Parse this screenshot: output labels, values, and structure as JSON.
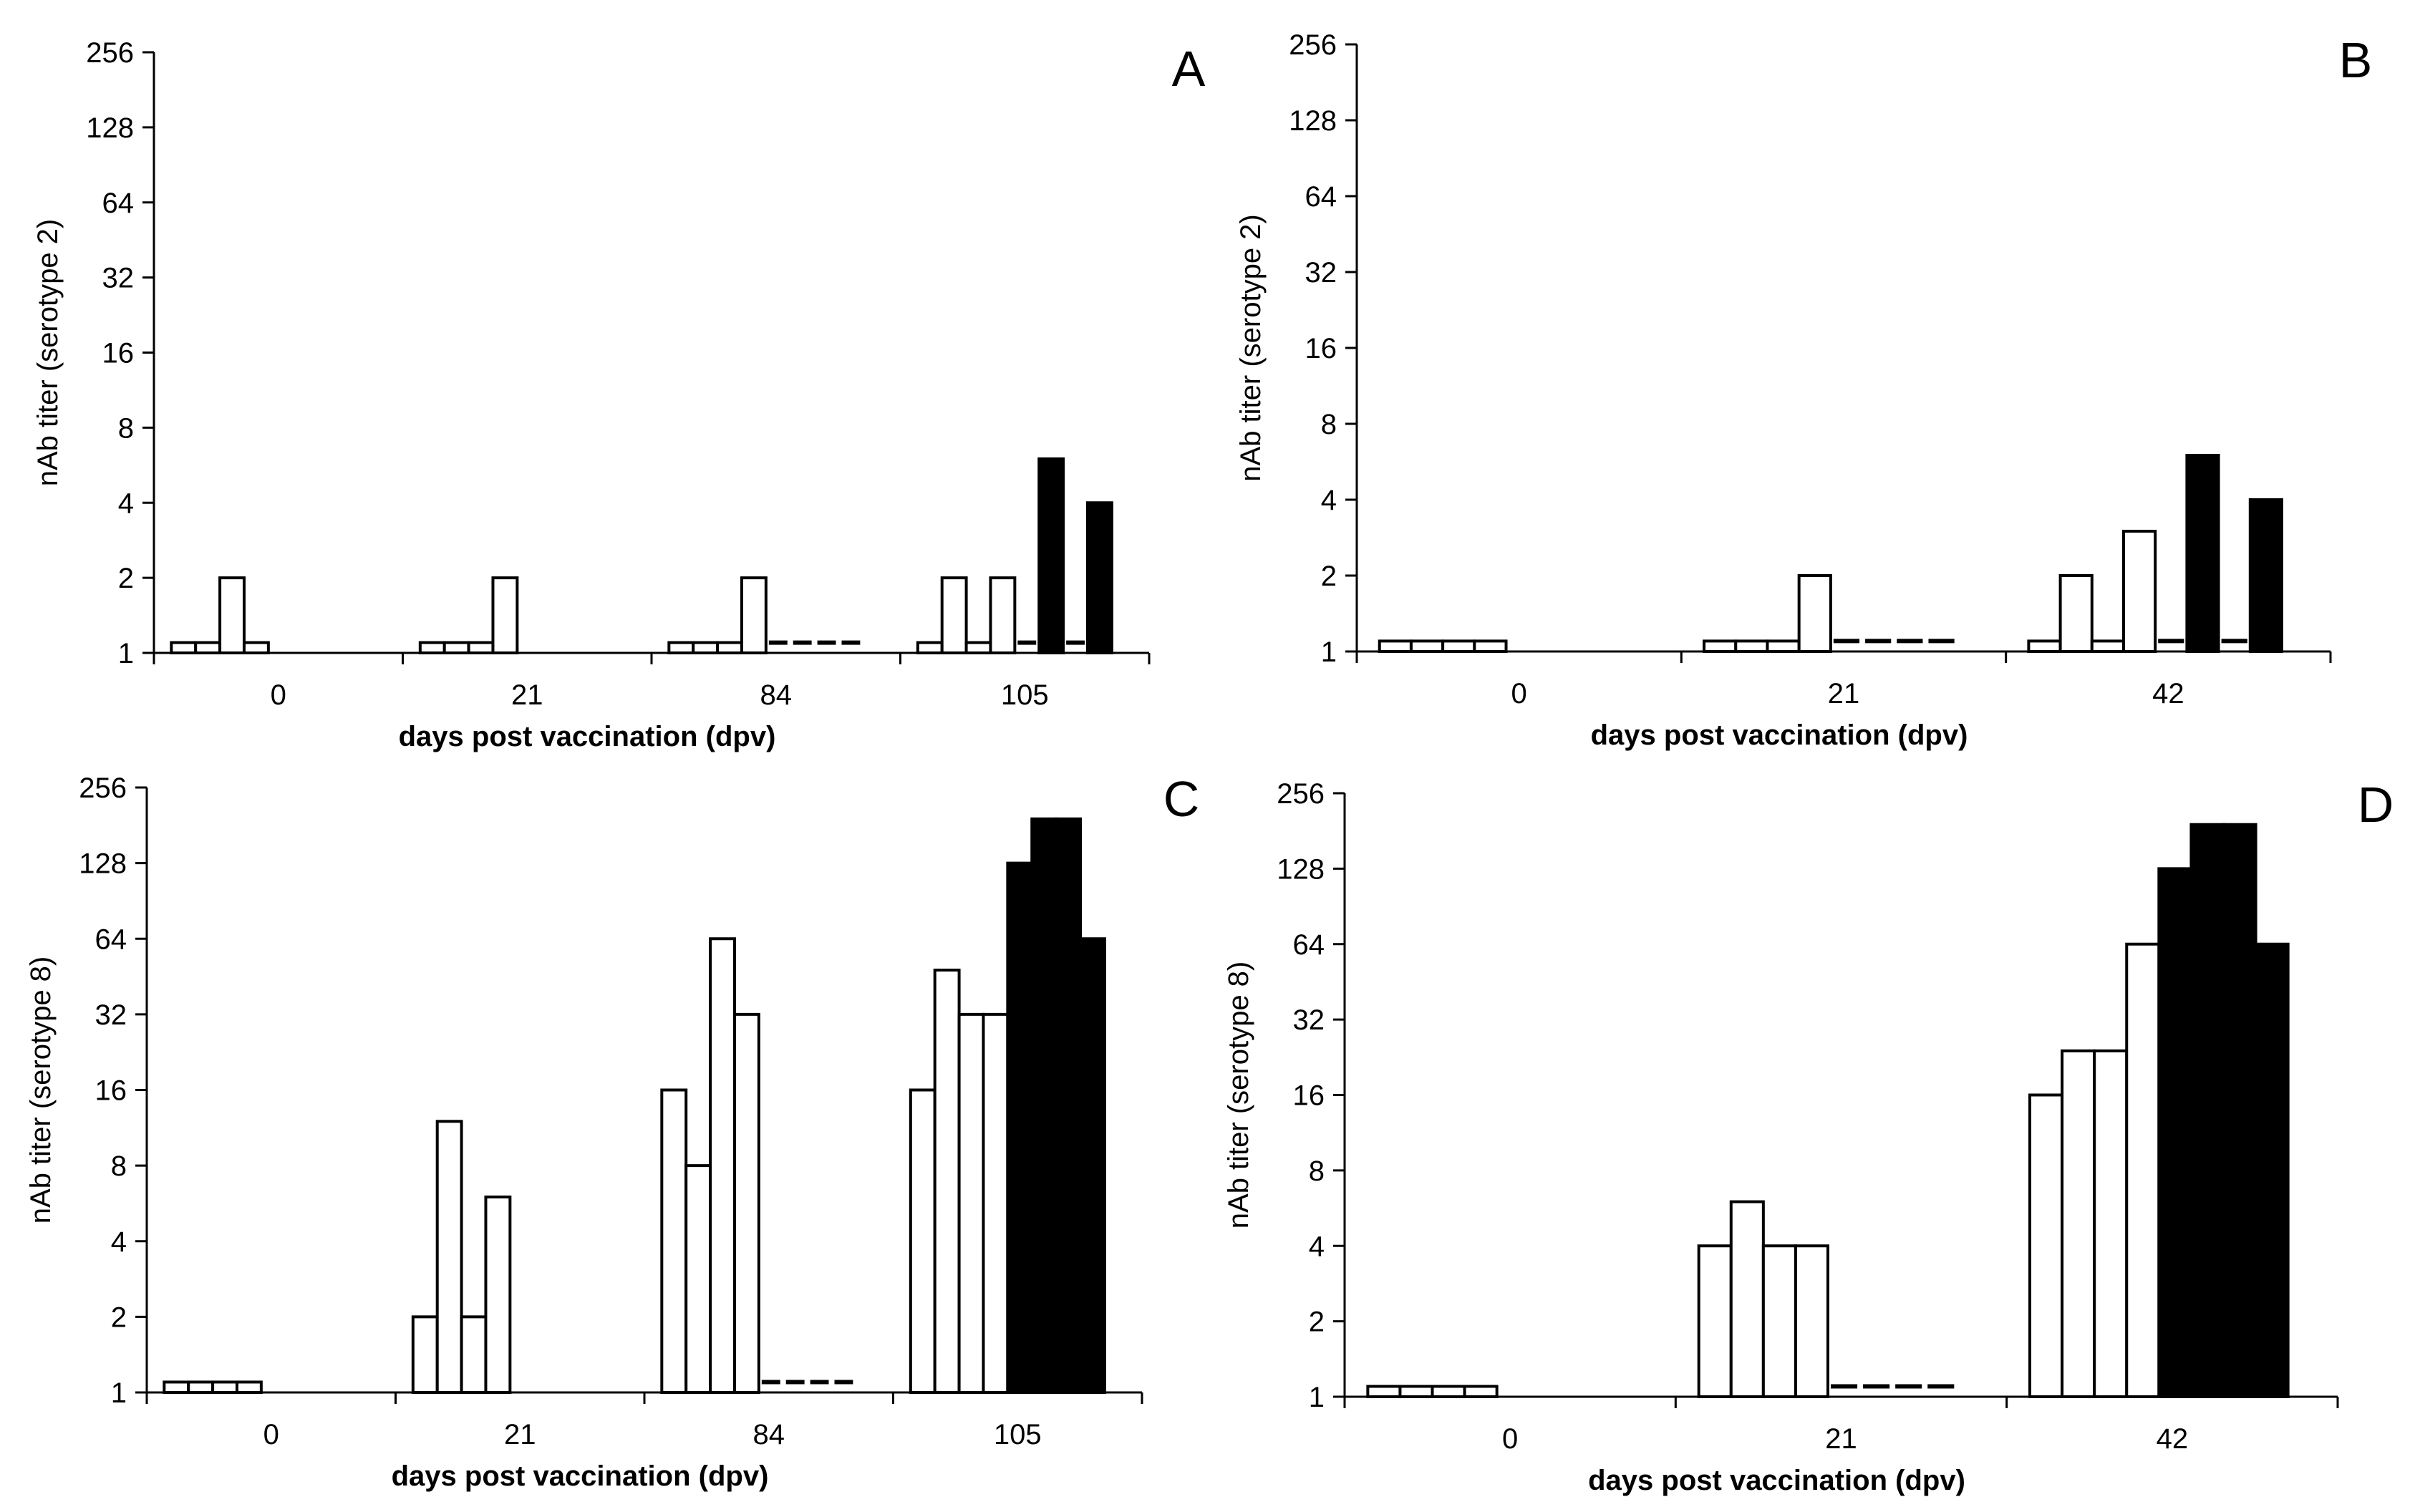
{
  "chart_data": [
    {
      "type": "bar",
      "panel_label": "A",
      "ylabel": "nAb titer (serotype 2)",
      "xlabel": "days post vaccination (dpv)",
      "y_scale": "log2",
      "ylim": [
        1,
        256
      ],
      "y_ticks": [
        "1",
        "2",
        "4",
        "8",
        "16",
        "32",
        "64",
        "128",
        "256"
      ],
      "groups": [
        {
          "label": "0",
          "open": [
            1.1,
            1.1,
            2,
            1.1
          ],
          "filled": []
        },
        {
          "label": "21",
          "open": [
            1.1,
            1.1,
            1.1,
            2
          ],
          "filled": []
        },
        {
          "label": "84",
          "open": [
            1.1,
            1.1,
            1.1,
            2
          ],
          "filled": [
            1.1,
            1.1,
            1.1,
            1.1
          ]
        },
        {
          "label": "105",
          "open": [
            1.1,
            2,
            1.1,
            2
          ],
          "filled": [
            1.1,
            6,
            1.1,
            4
          ]
        }
      ]
    },
    {
      "type": "bar",
      "panel_label": "B",
      "ylabel": "nAb titer (serotype 2)",
      "xlabel": "days post vaccination (dpv)",
      "y_scale": "log2",
      "ylim": [
        1,
        256
      ],
      "y_ticks": [
        "1",
        "2",
        "4",
        "8",
        "16",
        "32",
        "64",
        "128",
        "256"
      ],
      "groups": [
        {
          "label": "0",
          "open": [
            1.1,
            1.1,
            1.1,
            1.1
          ],
          "filled": []
        },
        {
          "label": "21",
          "open": [
            1.1,
            1.1,
            1.1,
            2
          ],
          "filled": [
            1.1,
            1.1,
            1.1,
            1.1
          ]
        },
        {
          "label": "42",
          "open": [
            1.1,
            2,
            1.1,
            3
          ],
          "filled": [
            1.1,
            6,
            1.1,
            4
          ]
        }
      ]
    },
    {
      "type": "bar",
      "panel_label": "C",
      "ylabel": "nAb titer (serotype 8)",
      "xlabel": "days post vaccination (dpv)",
      "y_scale": "log2",
      "ylim": [
        1,
        256
      ],
      "y_ticks": [
        "1",
        "2",
        "4",
        "8",
        "16",
        "32",
        "64",
        "128",
        "256"
      ],
      "groups": [
        {
          "label": "0",
          "open": [
            1.1,
            1.1,
            1.1,
            1.1
          ],
          "filled": []
        },
        {
          "label": "21",
          "open": [
            2,
            12,
            2,
            6
          ],
          "filled": []
        },
        {
          "label": "84",
          "open": [
            16,
            8,
            64,
            32
          ],
          "filled": [
            1.1,
            1.1,
            1.1,
            1.1
          ]
        },
        {
          "label": "105",
          "open": [
            16,
            48,
            32,
            32
          ],
          "filled": [
            128,
            192,
            192,
            64
          ]
        }
      ]
    },
    {
      "type": "bar",
      "panel_label": "D",
      "ylabel": "nAb titer (serotype 8)",
      "xlabel": "days post vaccination (dpv)",
      "y_scale": "log2",
      "ylim": [
        1,
        256
      ],
      "y_ticks": [
        "1",
        "2",
        "4",
        "8",
        "16",
        "32",
        "64",
        "128",
        "256"
      ],
      "groups": [
        {
          "label": "0",
          "open": [
            1.1,
            1.1,
            1.1,
            1.1
          ],
          "filled": []
        },
        {
          "label": "21",
          "open": [
            4,
            6,
            4,
            4
          ],
          "filled": [
            1.1,
            1.1,
            1.1,
            1.1
          ]
        },
        {
          "label": "42",
          "open": [
            16,
            24,
            24,
            64
          ],
          "filled": [
            128,
            192,
            192,
            64
          ]
        }
      ]
    }
  ],
  "colors": {
    "open_fill": "#ffffff",
    "filled_fill": "#000000",
    "stroke": "#000000"
  }
}
